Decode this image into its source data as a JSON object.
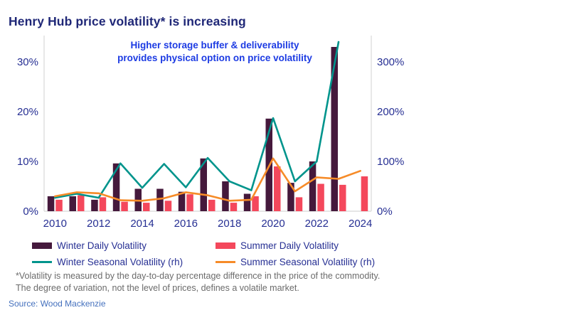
{
  "title": "Henry Hub price volatility* is increasing",
  "annotation": {
    "line1": "Higher storage buffer & deliverability",
    "line2": "provides physical option on price volatility"
  },
  "chart_data": {
    "type": "combo-bar-line",
    "x": [
      2010,
      2011,
      2012,
      2013,
      2014,
      2015,
      2016,
      2017,
      2018,
      2019,
      2020,
      2021,
      2022,
      2023,
      2024
    ],
    "x_ticks": [
      "2010",
      "2012",
      "2014",
      "2016",
      "2018",
      "2020",
      "2022",
      "2024"
    ],
    "left_axis": {
      "label": "daily volatility",
      "ticks": [
        "0%",
        "10%",
        "20%",
        "30%"
      ],
      "values": [
        0,
        10,
        20,
        30
      ],
      "max": 35
    },
    "right_axis": {
      "label": "seasonal volatility",
      "ticks": [
        "0%",
        "100%",
        "200%",
        "300%"
      ],
      "values": [
        0,
        100,
        200,
        300
      ],
      "max": 350
    },
    "grid": false,
    "legend_position": "bottom",
    "series": [
      {
        "name": "Winter Daily Volatility",
        "type": "bar",
        "axis": "left",
        "color": "#45193c",
        "values": [
          3.0,
          3.0,
          2.3,
          9.6,
          4.5,
          4.5,
          3.9,
          10.6,
          6.0,
          3.5,
          18.6,
          5.7,
          10.0,
          33.0,
          null
        ]
      },
      {
        "name": "Summer Daily Volatility",
        "type": "bar",
        "axis": "left",
        "color": "#f4485c",
        "values": [
          2.3,
          3.2,
          2.8,
          1.9,
          1.7,
          2.1,
          3.4,
          2.3,
          1.7,
          3.0,
          9.0,
          2.8,
          5.5,
          5.3,
          7.0
        ]
      },
      {
        "name": "Winter Seasonal Volatility (rh)",
        "type": "line",
        "axis": "right",
        "color": "#00948c",
        "values": [
          27,
          35,
          27,
          96,
          47,
          95,
          48,
          107,
          60,
          42,
          187,
          60,
          100,
          340,
          null
        ]
      },
      {
        "name": "Summer Seasonal Volatility (rh)",
        "type": "line",
        "axis": "right",
        "color": "#f68b28",
        "values": [
          30,
          38,
          36,
          22,
          21,
          26,
          38,
          32,
          21,
          23,
          106,
          40,
          68,
          65,
          81
        ]
      }
    ]
  },
  "footnote": {
    "line1": "*Volatility is measured by the day-to-day percentage difference in the price of the commodity.",
    "line2": "The degree of variation, not the level of prices, defines a volatile market."
  },
  "source": "Source: Wood Mackenzie"
}
